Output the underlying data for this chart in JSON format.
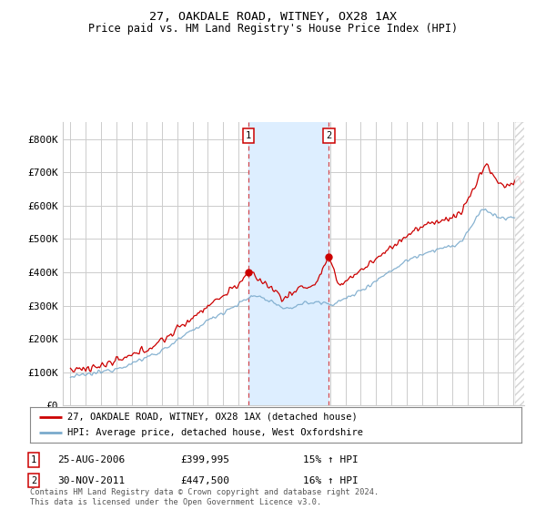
{
  "title": "27, OAKDALE ROAD, WITNEY, OX28 1AX",
  "subtitle": "Price paid vs. HM Land Registry's House Price Index (HPI)",
  "legend_line1": "27, OAKDALE ROAD, WITNEY, OX28 1AX (detached house)",
  "legend_line2": "HPI: Average price, detached house, West Oxfordshire",
  "annotation1_date": "25-AUG-2006",
  "annotation1_price": "£399,995",
  "annotation1_hpi": "15% ↑ HPI",
  "annotation2_date": "30-NOV-2011",
  "annotation2_price": "£447,500",
  "annotation2_hpi": "16% ↑ HPI",
  "footer": "Contains HM Land Registry data © Crown copyright and database right 2024.\nThis data is licensed under the Open Government Licence v3.0.",
  "red_color": "#cc0000",
  "blue_color": "#7aaacc",
  "shading_color": "#ddeeff",
  "grid_color": "#cccccc",
  "bg_color": "#ffffff",
  "ylim": [
    0,
    850000
  ],
  "yticks": [
    0,
    100000,
    200000,
    300000,
    400000,
    500000,
    600000,
    700000,
    800000
  ],
  "sale1_x": 2006.65,
  "sale1_y": 399995,
  "sale2_x": 2011.92,
  "sale2_y": 447500,
  "vline1_x": 2006.65,
  "vline2_x": 2011.92,
  "shade_start": 2006.65,
  "shade_end": 2011.92,
  "xmin": 1995.0,
  "xmax": 2024.6
}
